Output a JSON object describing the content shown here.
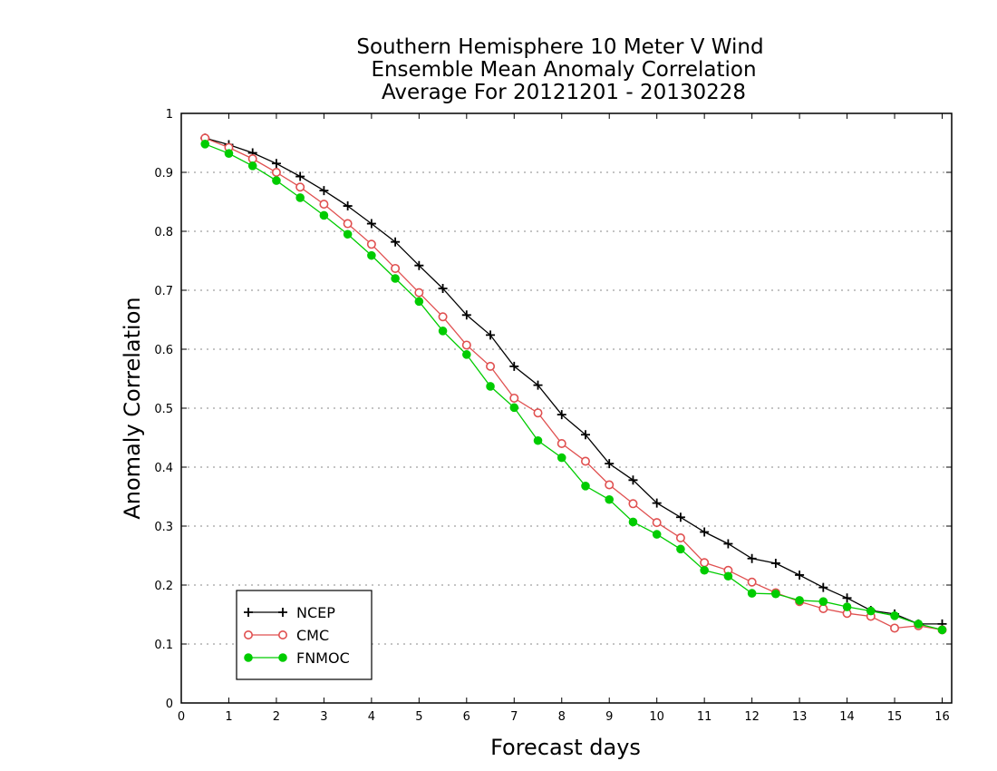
{
  "chart_data": {
    "type": "line",
    "title_lines": [
      "Southern Hemisphere 10 Meter V Wind",
      "Ensemble Mean Anomaly Correlation",
      "Average For 20121201 - 20130228"
    ],
    "xlabel": "Forecast days",
    "ylabel": "Anomaly Correlation",
    "xlim": [
      0,
      16.2
    ],
    "ylim": [
      0,
      1
    ],
    "x_ticks": [
      0,
      1,
      2,
      3,
      4,
      5,
      6,
      7,
      8,
      9,
      10,
      11,
      12,
      13,
      14,
      15,
      16
    ],
    "y_ticks": [
      0,
      0.1,
      0.2,
      0.3,
      0.4,
      0.5,
      0.6,
      0.7,
      0.8,
      0.9,
      1
    ],
    "y_tick_labels": [
      "0",
      "0.1",
      "0.2",
      "0.3",
      "0.4",
      "0.5",
      "0.6",
      "0.7",
      "0.8",
      "0.9",
      "1"
    ],
    "grid": "horizontal dotted",
    "legend": "bottom-left",
    "x": [
      0.5,
      1,
      1.5,
      2,
      2.5,
      3,
      3.5,
      4,
      4.5,
      5,
      5.5,
      6,
      6.5,
      7,
      7.5,
      8,
      8.5,
      9,
      9.5,
      10,
      10.5,
      11,
      11.5,
      12,
      12.5,
      13,
      13.5,
      14,
      14.5,
      15,
      15.5,
      16
    ],
    "series": [
      {
        "name": "NCEP",
        "color": "#000000",
        "marker": "plus",
        "values": [
          0.958,
          0.947,
          0.933,
          0.915,
          0.893,
          0.869,
          0.843,
          0.813,
          0.782,
          0.742,
          0.703,
          0.658,
          0.624,
          0.571,
          0.539,
          0.489,
          0.455,
          0.406,
          0.378,
          0.339,
          0.315,
          0.29,
          0.27,
          0.245,
          0.237,
          0.217,
          0.196,
          0.178,
          0.157,
          0.151,
          0.134,
          0.134
        ]
      },
      {
        "name": "CMC",
        "color": "#e05050",
        "marker": "open-circle",
        "values": [
          0.958,
          0.942,
          0.923,
          0.9,
          0.875,
          0.846,
          0.813,
          0.778,
          0.737,
          0.696,
          0.655,
          0.607,
          0.571,
          0.517,
          0.492,
          0.44,
          0.41,
          0.37,
          0.338,
          0.306,
          0.28,
          0.238,
          0.225,
          0.205,
          0.187,
          0.172,
          0.16,
          0.152,
          0.147,
          0.127,
          0.131,
          0.124
        ]
      },
      {
        "name": "FNMOC",
        "color": "#00cc00",
        "marker": "filled-circle",
        "values": [
          0.948,
          0.932,
          0.911,
          0.886,
          0.857,
          0.827,
          0.795,
          0.759,
          0.72,
          0.681,
          0.631,
          0.591,
          0.537,
          0.501,
          0.445,
          0.416,
          0.368,
          0.345,
          0.307,
          0.286,
          0.261,
          0.225,
          0.215,
          0.186,
          0.185,
          0.174,
          0.172,
          0.163,
          0.156,
          0.148,
          0.134,
          0.124
        ]
      }
    ]
  }
}
